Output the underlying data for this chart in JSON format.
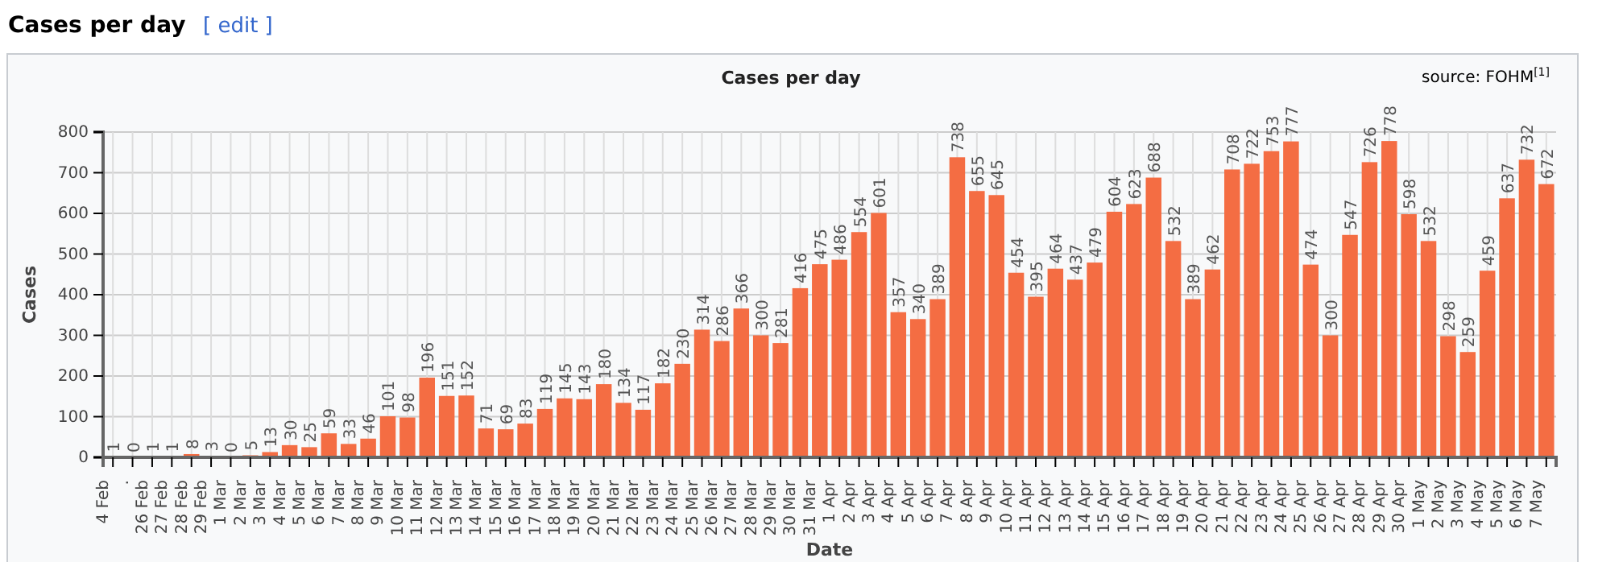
{
  "chart_data": {
    "type": "bar",
    "title": "Cases per day",
    "xlabel": "Date",
    "ylabel": "Cases",
    "annotations": [
      "Cases per day",
      "[ edit ]",
      "source: FOHM$^{[1]}$"
    ],
    "categories": [
      "4 Feb",
      ".",
      "26 Feb",
      "27 Feb",
      "28 Feb",
      "29 Feb",
      "1 Mar",
      "2 Mar",
      "3 Mar",
      "4 Mar",
      "5 Mar",
      "6 Mar",
      "7 Mar",
      "8 Mar",
      "9 Mar",
      "10 Mar",
      "11 Mar",
      "12 Mar",
      "13 Mar",
      "14 Mar",
      "15 Mar",
      "16 Mar",
      "17 Mar",
      "18 Mar",
      "19 Mar",
      "20 Mar",
      "21 Mar",
      "22 Mar",
      "23 Mar",
      "24 Mar",
      "25 Mar",
      "26 Mar",
      "27 Mar",
      "28 Mar",
      "29 Mar",
      "30 Mar",
      "31 Mar",
      "1 Apr",
      "2 Apr",
      "3 Apr",
      "4 Apr",
      "5 Apr",
      "6 Apr",
      "7 Apr",
      "8 Apr",
      "9 Apr",
      "10 Apr",
      "11 Apr",
      "12 Apr",
      "13 Apr",
      "14 Apr",
      "15 Apr",
      "16 Apr",
      "17 Apr",
      "18 Apr",
      "19 Apr",
      "20 Apr",
      "21 Apr",
      "22 Apr",
      "23 Apr",
      "24 Apr",
      "25 Apr",
      "26 Apr",
      "27 Apr",
      "28 Apr",
      "29 Apr",
      "30 Apr",
      "1 May",
      "2 May",
      "3 May",
      "4 May",
      "5 May",
      "6 May",
      "7 May"
    ],
    "values": [
      1,
      0,
      1,
      1,
      8,
      3,
      0,
      5,
      13,
      30,
      25,
      59,
      33,
      46,
      101,
      98,
      196,
      151,
      152,
      71,
      69,
      83,
      119,
      145,
      143,
      180,
      134,
      117,
      182,
      230,
      314,
      286,
      366,
      300,
      281,
      416,
      475,
      486,
      554,
      601,
      357,
      340,
      389,
      738,
      655,
      645,
      454,
      395,
      464,
      437,
      479,
      604,
      623,
      688,
      532,
      389,
      462,
      708,
      722,
      753,
      777,
      474,
      300,
      547,
      726,
      778,
      598,
      532,
      298,
      259,
      459,
      637,
      732,
      672
    ],
    "color": "#f46d43",
    "ylim": [
      0,
      800
    ],
    "yticks": [
      0,
      100,
      200,
      300,
      400,
      500,
      600,
      700,
      800
    ],
    "grid": true,
    "data_labels": true
  }
}
